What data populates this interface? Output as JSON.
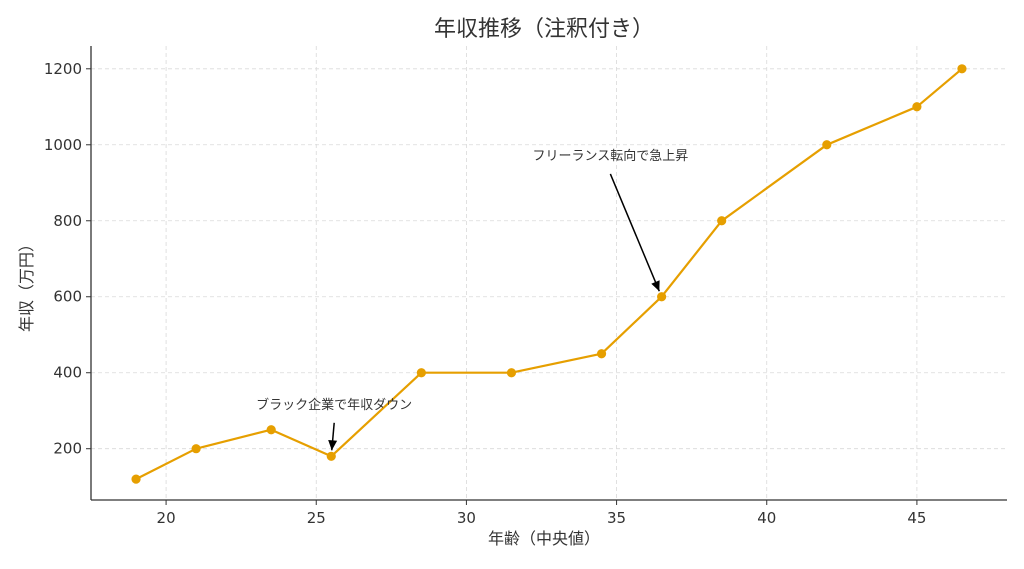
{
  "chart_data": {
    "type": "line",
    "title": "年収推移（注釈付き）",
    "xlabel": "年齢（中央値）",
    "ylabel": "年収（万円）",
    "xlim": [
      17.5,
      48
    ],
    "ylim": [
      65,
      1260
    ],
    "xticks": [
      20,
      25,
      30,
      35,
      40,
      45
    ],
    "yticks": [
      200,
      400,
      600,
      800,
      1000,
      1200
    ],
    "grid": true,
    "color": "#E69F00",
    "series": [
      {
        "x": [
          19,
          21,
          23.5,
          25.5,
          28.5,
          31.5,
          34.5,
          36.5,
          38.5,
          42,
          45,
          46.5
        ],
        "y": [
          120,
          200,
          250,
          180,
          400,
          400,
          450,
          600,
          800,
          1000,
          1100,
          1200
        ]
      }
    ],
    "annotations": [
      {
        "text": "ブラック企業で年収ダウン",
        "x": 25.5,
        "y": 180,
        "text_x": 23,
        "text_y": 305
      },
      {
        "text": "フリーランス転向で急上昇",
        "x": 36.5,
        "y": 600,
        "text_x": 32.2,
        "text_y": 960
      }
    ]
  }
}
